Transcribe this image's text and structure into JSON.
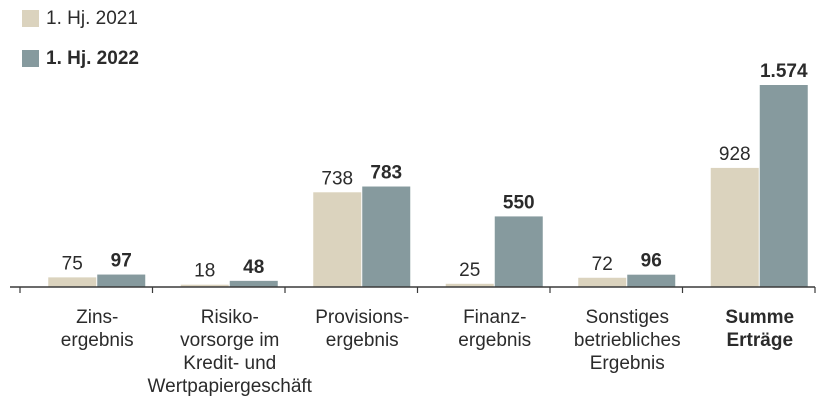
{
  "chart_data": {
    "type": "bar",
    "categories": [
      "Zins-\nergebnis",
      "Risiko-\nvorsorge im\nKredit- und\nWertpapiergeschäft",
      "Provisions-\nergebnis",
      "Finanz-\nergebnis",
      "Sonstiges\nbetriebliches\nErgebnis",
      "Summe\nErträge"
    ],
    "series": [
      {
        "name": "1. Hj. 2021",
        "color": "#dbd3be",
        "values": [
          75,
          18,
          738,
          25,
          72,
          928
        ]
      },
      {
        "name": "1. Hj. 2022",
        "color": "#869a9e",
        "values": [
          97,
          48,
          783,
          550,
          96,
          1574
        ],
        "value_labels": [
          "97",
          "48",
          "783",
          "550",
          "96",
          "1.574"
        ]
      }
    ]
  }
}
